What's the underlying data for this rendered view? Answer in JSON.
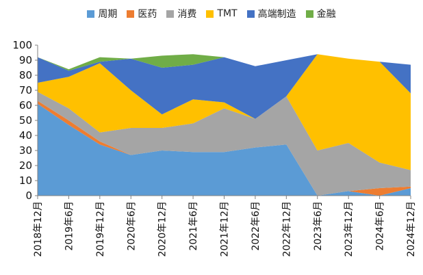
{
  "chart_data": {
    "type": "area",
    "stacked": true,
    "categories": [
      "2018年12月",
      "2019年6月",
      "2019年12月",
      "2020年6月",
      "2020年12月",
      "2021年6月",
      "2021年12月",
      "2022年6月",
      "2022年12月",
      "2023年6月",
      "2023年12月",
      "2024年6月",
      "2024年12月"
    ],
    "ylim": [
      0,
      100
    ],
    "yticks": [
      0,
      10,
      20,
      30,
      40,
      50,
      60,
      70,
      80,
      90,
      100
    ],
    "legend_position": "top",
    "series": [
      {
        "name": "周期",
        "color": "#5B9BD5",
        "values": [
          61,
          47,
          34,
          27,
          30,
          29,
          29,
          32,
          34,
          0,
          3,
          0,
          5
        ]
      },
      {
        "name": "医药",
        "color": "#ED7D31",
        "values": [
          2,
          3,
          2,
          0,
          0,
          0,
          0,
          0,
          0,
          0,
          0,
          5,
          1
        ]
      },
      {
        "name": "消费",
        "color": "#A5A5A5",
        "values": [
          6,
          8,
          6,
          18,
          15,
          19,
          29,
          19,
          32,
          30,
          32,
          17,
          11
        ]
      },
      {
        "name": "TMT",
        "color": "#FFC000",
        "values": [
          6,
          21,
          46,
          25,
          9,
          16,
          4,
          0,
          0,
          64,
          56,
          67,
          51
        ]
      },
      {
        "name": "高端制造",
        "color": "#4472C4",
        "values": [
          17,
          4,
          1,
          21,
          31,
          23,
          30,
          35,
          24,
          0,
          0,
          0,
          19
        ]
      },
      {
        "name": "金融",
        "color": "#70AD47",
        "values": [
          0,
          1,
          3,
          0,
          8,
          7,
          0,
          0,
          0,
          0,
          0,
          0,
          0
        ]
      }
    ]
  }
}
